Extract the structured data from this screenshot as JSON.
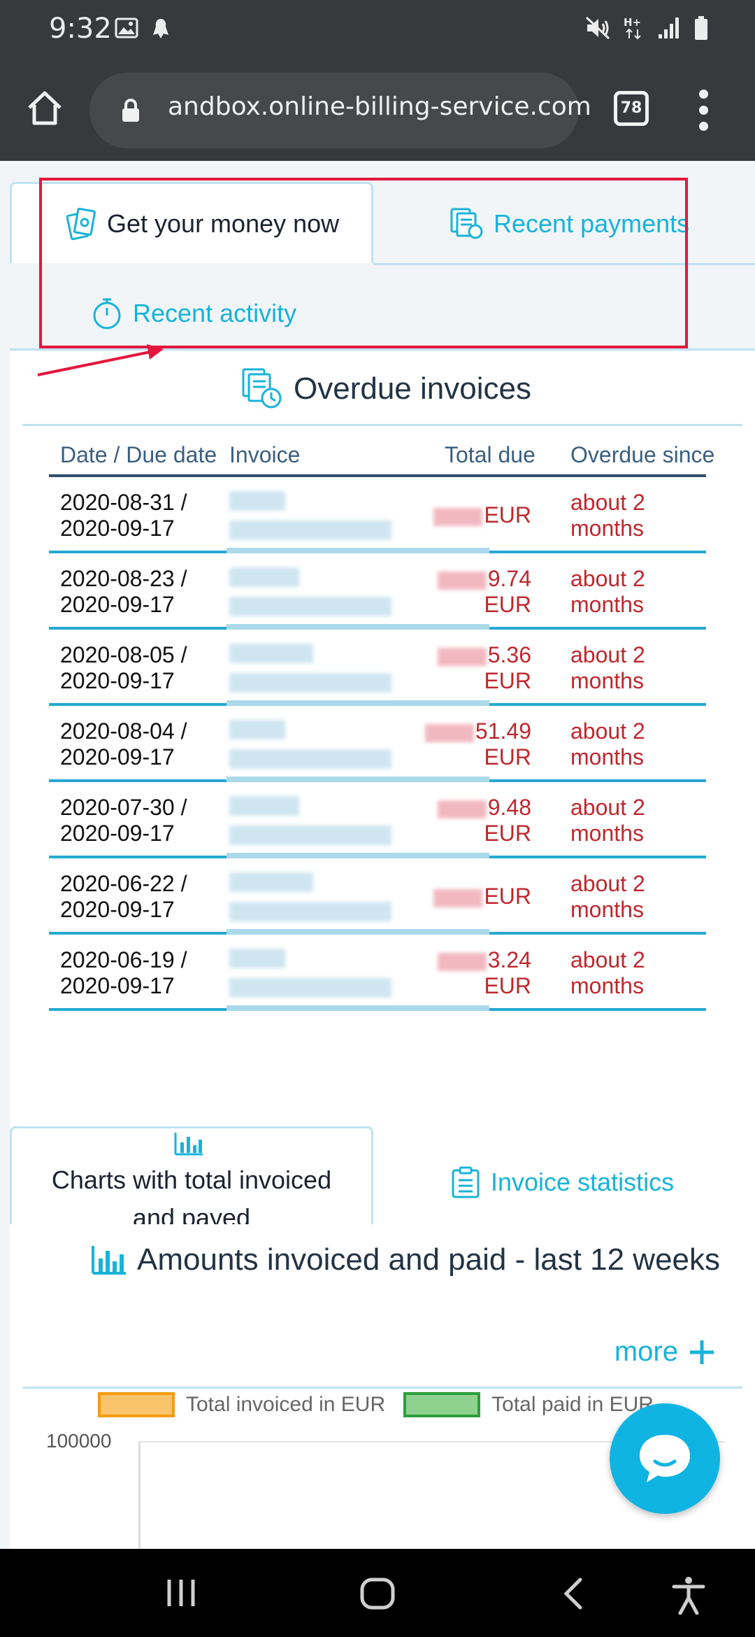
{
  "status_bar": {
    "time": "9:32",
    "icons": [
      "gallery-icon",
      "notification-app-icon",
      "mute-icon",
      "hplus-data-icon",
      "signal-icon",
      "battery-icon"
    ]
  },
  "browser": {
    "url": "andbox.online-billing-service.com",
    "tab_count": "78"
  },
  "top_tabs": {
    "active": "Get your money now",
    "recent_payments": "Recent payments",
    "recent_activity": "Recent activity"
  },
  "overdue": {
    "title": "Overdue invoices",
    "headers": {
      "date": "Date / Due date",
      "invoice": "Invoice",
      "total_due": "Total due",
      "overdue_since": "Overdue since"
    },
    "rows": [
      {
        "date": "2020-08-31 /\n2020-09-17",
        "due_visible": "",
        "currency": "EUR",
        "overdue": "about 2\nmonths"
      },
      {
        "date": "2020-08-23 /\n2020-09-17",
        "due_visible": "9.74",
        "currency": "EUR",
        "overdue": "about 2\nmonths"
      },
      {
        "date": "2020-08-05 /\n2020-09-17",
        "due_visible": "5.36",
        "currency": "EUR",
        "overdue": "about 2\nmonths"
      },
      {
        "date": "2020-08-04 /\n2020-09-17",
        "due_visible": "51.49",
        "currency": "EUR",
        "overdue": "about 2\nmonths"
      },
      {
        "date": "2020-07-30 /\n2020-09-17",
        "due_visible": "9.48",
        "currency": "EUR",
        "overdue": "about 2\nmonths"
      },
      {
        "date": "2020-06-22 /\n2020-09-17",
        "due_visible": "",
        "currency": "EUR",
        "overdue": "about 2\nmonths"
      },
      {
        "date": "2020-06-19 /\n2020-09-17",
        "due_visible": "3.24",
        "currency": "EUR",
        "overdue": "about 2\nmonths"
      }
    ]
  },
  "bottom_tabs": {
    "active": "Charts with total invoiced and payed",
    "invoice_statistics": "Invoice statistics"
  },
  "chart_section": {
    "title": "Amounts invoiced and paid - last 12 weeks",
    "more": "more"
  },
  "chart_data": {
    "type": "bar",
    "title": "Amounts invoiced and paid - last 12 weeks",
    "series": [
      {
        "name": "Total invoiced in EUR",
        "color": "#f9c46b",
        "border": "#f39c12"
      },
      {
        "name": "Total paid in EUR",
        "color": "#8fd18f",
        "border": "#2e9e3a"
      }
    ],
    "y_ticks": [
      "100000"
    ],
    "grid": true,
    "legend": "top"
  },
  "colors": {
    "accent": "#17b3d9",
    "overdue_red": "#c0272d",
    "annotation": "#e3173e"
  }
}
